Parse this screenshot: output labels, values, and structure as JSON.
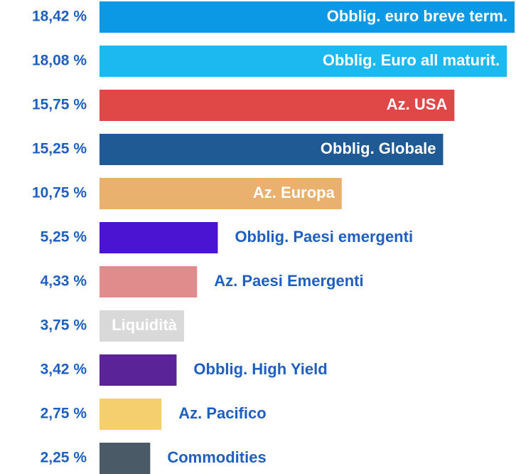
{
  "chart_data": {
    "type": "bar",
    "orientation": "horizontal",
    "categories": [
      "Obblig. euro breve term.",
      "Obblig. Euro all maturit.",
      "Az. USA",
      "Obblig. Globale",
      "Az. Europa",
      "Obblig. Paesi emergenti",
      "Az. Paesi Emergenti",
      "Liquidità",
      "Obblig. High Yield",
      "Az. Pacifico",
      "Commodities"
    ],
    "values": [
      18.42,
      18.08,
      15.75,
      15.25,
      10.75,
      5.25,
      4.33,
      3.75,
      3.42,
      2.75,
      2.25
    ],
    "value_labels": [
      "18,42 %",
      "18,08 %",
      "15,75 %",
      "15,25 %",
      "10,75 %",
      "5,25 %",
      "4,33 %",
      "3,75 %",
      "3,42 %",
      "2,75 %",
      "2,25 %"
    ],
    "colors": [
      "#0b98e4",
      "#1cb8f0",
      "#e04848",
      "#1f5a94",
      "#e9b06e",
      "#4b14d2",
      "#e08c8c",
      "#d9d9d9",
      "#5a2398",
      "#f5cf6e",
      "#4a5a66"
    ]
  }
}
